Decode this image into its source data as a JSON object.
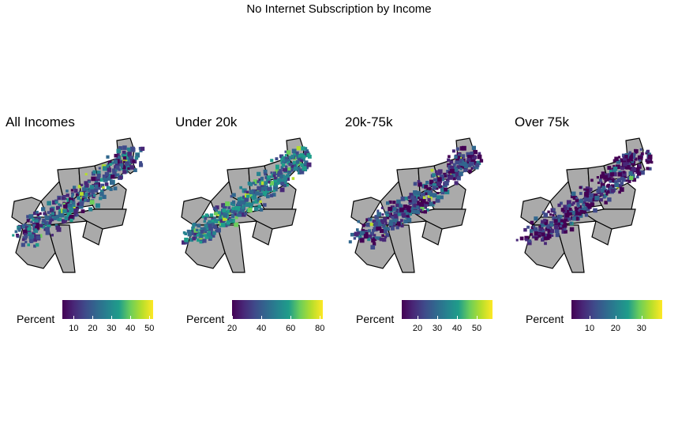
{
  "title": "No Internet Subscription by Income",
  "colors": {
    "state_fill": "#aaaaaa",
    "state_border": "#000000",
    "scale": [
      "#440154",
      "#482777",
      "#3f4a8a",
      "#31678e",
      "#26838f",
      "#1f9d8a",
      "#6cce5a",
      "#b6de2b",
      "#fee825"
    ]
  },
  "legend_label": "Percent",
  "panels": [
    {
      "title": "All Incomes",
      "scale_min": 4,
      "scale_max": 52,
      "ticks": [
        10,
        20,
        30,
        40,
        50
      ],
      "bias": 0.35
    },
    {
      "title": "Under 20k",
      "scale_min": 20,
      "scale_max": 82,
      "ticks": [
        20,
        40,
        60,
        80
      ],
      "bias": 0.5
    },
    {
      "title": "20k-75k",
      "scale_min": 12,
      "scale_max": 58,
      "ticks": [
        20,
        30,
        40,
        50
      ],
      "bias": 0.25
    },
    {
      "title": "Over 75k",
      "scale_min": 3,
      "scale_max": 38,
      "ticks": [
        10,
        20,
        30
      ],
      "bias": 0.15
    }
  ]
}
